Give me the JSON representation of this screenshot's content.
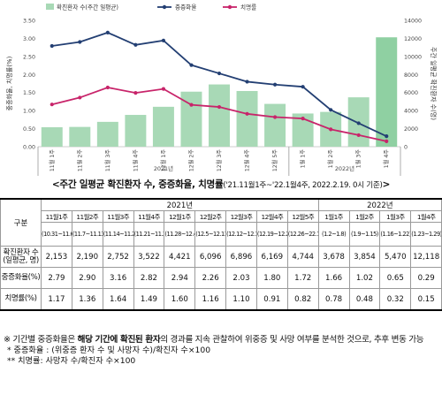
{
  "chart_data": {
    "type": "bar",
    "left_axis": {
      "label": "중증화율, 치명률(%)",
      "ylim": [
        0,
        3.5
      ],
      "ticks": [
        "0.00",
        "0.50",
        "1.00",
        "1.50",
        "2.00",
        "2.50",
        "3.00",
        "3.50"
      ]
    },
    "right_axis": {
      "label": "주간 일평균 확진환자 수(명)",
      "ylim": [
        0,
        14000
      ],
      "ticks": [
        "0",
        "2000",
        "4000",
        "6000",
        "8000",
        "10000",
        "12000",
        "14000"
      ]
    },
    "categories": [
      "11월 1주",
      "11월 2주",
      "11월 3주",
      "11월 4주",
      "12월 1주",
      "12월 2주",
      "12월 3주",
      "12월 4주",
      "12월 5주",
      "1월 1주",
      "1월 2주",
      "1월 3주",
      "1월 4주"
    ],
    "year_groups": [
      {
        "label": "2021년",
        "count": 9
      },
      {
        "label": "2022년",
        "count": 4
      }
    ],
    "series": [
      {
        "name": "확진환자 수(주간 일평균)",
        "kind": "bar",
        "axis": "right",
        "color": "#a8d9b6",
        "highlight": {
          "index": 12,
          "color": "#8fd0a2"
        },
        "values": [
          2153,
          2190,
          2752,
          3522,
          4421,
          6096,
          6896,
          6169,
          4744,
          3678,
          3854,
          5470,
          12118
        ]
      },
      {
        "name": "중증화율",
        "kind": "line",
        "axis": "left",
        "color": "#233f73",
        "values": [
          2.79,
          2.9,
          3.16,
          2.82,
          2.94,
          2.26,
          2.03,
          1.8,
          1.72,
          1.66,
          1.02,
          0.65,
          0.29
        ]
      },
      {
        "name": "치명률",
        "kind": "line",
        "axis": "left",
        "color": "#c8246a",
        "values": [
          1.17,
          1.36,
          1.64,
          1.49,
          1.6,
          1.16,
          1.1,
          0.91,
          0.82,
          0.78,
          0.48,
          0.32,
          0.15
        ]
      }
    ]
  },
  "caption": {
    "title": "<주간 일평균 확진환자 수, 중증화율, 치명률",
    "sub": "('21.11월1주~'22.1월4주, 2022.2.19. 0시 기준)",
    "close": ">"
  },
  "table": {
    "gubun": "구분",
    "years": [
      {
        "label": "2021년",
        "span": 9
      },
      {
        "label": "2022년",
        "span": 4
      }
    ],
    "weeks": [
      "11월1주",
      "11월2주",
      "11월3주",
      "11월4주",
      "12월1주",
      "12월2주",
      "12월3주",
      "12월4주",
      "12월5주",
      "1월1주",
      "1월2주",
      "1월3주",
      "1월4주"
    ],
    "dates": [
      "(10.31~11.6)",
      "(11.7~11.13)",
      "(11.14~11.20)",
      "(11.21~11.27)",
      "(11.28~12.4)",
      "(12.5~12.11)",
      "(12.12~12.18)",
      "(12.19~12.25)",
      "(12.26~22.1.1)",
      "(1.2~1.8)",
      "(1.9~1.15)",
      "(1.16~1.22)",
      "(1.23~1.29)"
    ],
    "rows": [
      {
        "label": "확진환자 수(일평균, 명)",
        "values": [
          "2,153",
          "2,190",
          "2,752",
          "3,522",
          "4,421",
          "6,096",
          "6,896",
          "6,169",
          "4,744",
          "3,678",
          "3,854",
          "5,470",
          "12,118"
        ]
      },
      {
        "label": "중증화율(%)",
        "values": [
          "2.79",
          "2.90",
          "3.16",
          "2.82",
          "2.94",
          "2.26",
          "2.03",
          "1.80",
          "1.72",
          "1.66",
          "1.02",
          "0.65",
          "0.29"
        ]
      },
      {
        "label": "치명률(%)",
        "values": [
          "1.17",
          "1.36",
          "1.64",
          "1.49",
          "1.60",
          "1.16",
          "1.10",
          "0.91",
          "0.82",
          "0.78",
          "0.48",
          "0.32",
          "0.15"
        ]
      }
    ]
  },
  "footnotes": {
    "main_prefix": "※ 기간별 중증화율은 ",
    "main_bold": "해당 기간에 확진된 환자",
    "main_suffix": "의 경과를 지속 관찰하여 위중증 및 사망 여부를 분석한 것으로, 추후 변동 가능",
    "note1": "* 중증화율 : (위중증 환자 수 및 사망자 수)/확진자 수×100",
    "note2": "** 치명률: 사망자 수/확진자 수×100"
  }
}
